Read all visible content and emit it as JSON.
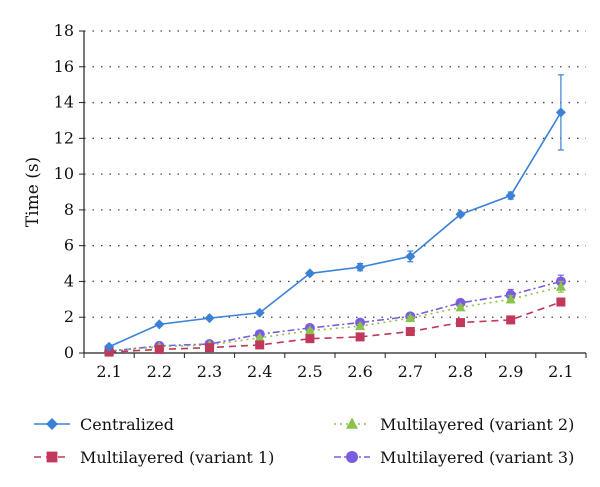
{
  "chart_data": {
    "type": "line",
    "ylabel": "Time (s)",
    "xlabel": "",
    "categories": [
      "2.1",
      "2.2",
      "2.3",
      "2.4",
      "2.5",
      "2.6",
      "2.7",
      "2.8",
      "2.9",
      "2.1"
    ],
    "ylim": [
      0,
      18
    ],
    "yticks": [
      0,
      2,
      4,
      6,
      8,
      10,
      12,
      14,
      16,
      18
    ],
    "grid": "horizontal dotted",
    "legend_position": "bottom",
    "series": [
      {
        "name": "Centralized",
        "color": "#3b82d6",
        "marker": "diamond",
        "line_style": "solid",
        "values": [
          0.35,
          1.6,
          1.95,
          2.25,
          4.45,
          4.8,
          5.4,
          7.75,
          8.8,
          13.45
        ],
        "errors": [
          0.1,
          0.08,
          0.08,
          0.08,
          0.1,
          0.2,
          0.3,
          0.12,
          0.2,
          2.1
        ]
      },
      {
        "name": "Multilayered (variant 1)",
        "color": "#c0395a",
        "marker": "square",
        "line_style": "dashed",
        "values": [
          0.05,
          0.2,
          0.3,
          0.45,
          0.8,
          0.9,
          1.2,
          1.7,
          1.85,
          2.85
        ],
        "errors": [
          0.04,
          0.04,
          0.04,
          0.05,
          0.05,
          0.05,
          0.05,
          0.08,
          0.15,
          0.18
        ]
      },
      {
        "name": "Multilayered (variant 2)",
        "color": "#8bc34a",
        "marker": "triangle",
        "line_style": "dotted",
        "values": [
          0.1,
          0.35,
          0.45,
          0.85,
          1.25,
          1.5,
          1.95,
          2.55,
          3.0,
          3.7
        ],
        "errors": [
          0.04,
          0.05,
          0.05,
          0.08,
          0.08,
          0.1,
          0.1,
          0.12,
          0.2,
          0.3
        ]
      },
      {
        "name": "Multilayered (variant 3)",
        "color": "#7b5ce0",
        "marker": "circle",
        "line_style": "dash-dot",
        "values": [
          0.1,
          0.4,
          0.5,
          1.05,
          1.4,
          1.7,
          2.05,
          2.8,
          3.25,
          4.0
        ],
        "errors": [
          0.05,
          0.05,
          0.05,
          0.1,
          0.1,
          0.15,
          0.1,
          0.2,
          0.3,
          0.35
        ]
      }
    ]
  }
}
